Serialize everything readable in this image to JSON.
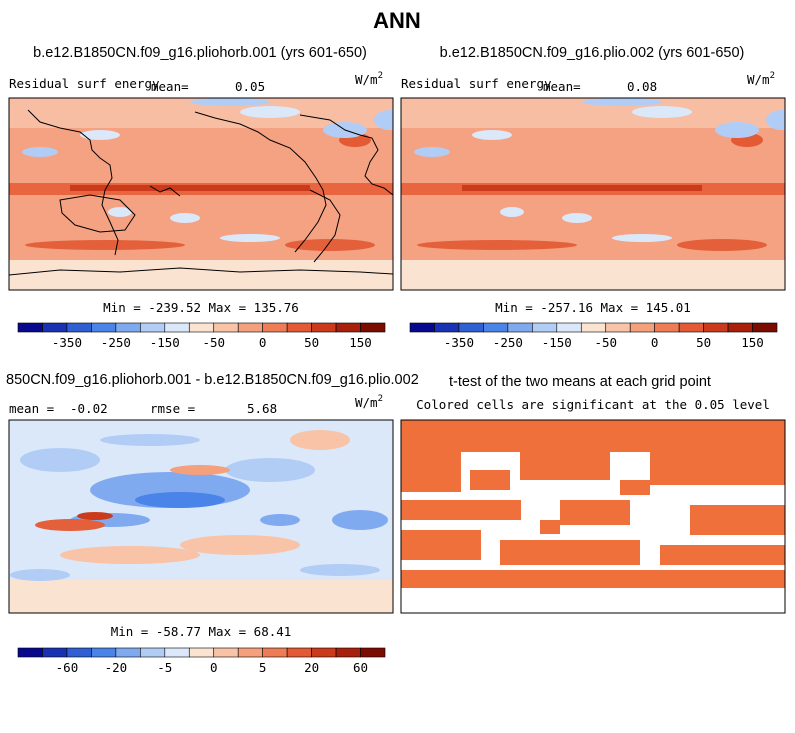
{
  "title": "ANN",
  "units_base": "W/m",
  "units_exp": "2",
  "colors": {
    "land_outline": "#000000",
    "significance": "#f0703c",
    "scale_abs": [
      "#08088f",
      "#1932b4",
      "#2f5fd2",
      "#4a84e8",
      "#80aaf0",
      "#b2cdf5",
      "#dbe8fa",
      "#fbe3d2",
      "#f8c3a6",
      "#f4a07c",
      "#ee7d56",
      "#e35a35",
      "#cc3a1c",
      "#a81f0b",
      "#7a0c02"
    ],
    "scale_diff": [
      "#08088f",
      "#1932b4",
      "#2f5fd2",
      "#4a84e8",
      "#80aaf0",
      "#b2cdf5",
      "#dbe8fa",
      "#fbe3d2",
      "#f8c3a6",
      "#f4a07c",
      "#ee7d56",
      "#e35a35",
      "#cc3a1c",
      "#a81f0b",
      "#7a0c02"
    ]
  },
  "panels": {
    "case1": {
      "case_title": "b.e12.B1850CN.f09_g16.pliohorb.001 (yrs 601-650)",
      "variable": "Residual surf energy",
      "mean_label": "mean=",
      "mean_value": "0.05",
      "stats": "Min = -239.52 Max = 135.76"
    },
    "case2": {
      "case_title": "b.e12.B1850CN.f09_g16.plio.002 (yrs 601-650)",
      "variable": "Residual surf energy",
      "mean_label": "mean=",
      "mean_value": "0.08",
      "stats": "Min = -257.16 Max = 145.01"
    },
    "diff": {
      "case_title": "850CN.f09_g16.pliohorb.001 - b.e12.B1850CN.f09_g16.plio.002",
      "mean_label": "mean =",
      "mean_value": "-0.02",
      "rmse_label": "rmse =",
      "rmse_value": "5.68",
      "stats": "Min = -58.77 Max = 68.41"
    },
    "ttest": {
      "case_title": "t-test of the two means at each grid point",
      "subtitle": "Colored cells are significant at the 0.05 level"
    }
  },
  "chart_data": [
    {
      "type": "heatmap",
      "title": "b.e12.B1850CN.f09_g16.pliohorb.001 (yrs 601-650)",
      "variable": "Residual surf energy",
      "units": "W/m2",
      "mean": 0.05,
      "min": -239.52,
      "max": 135.76,
      "colorbar_ticks": [
        "-350",
        "-250",
        "-150",
        "-50",
        "0",
        "50",
        "150"
      ],
      "colorbar_levels": 15
    },
    {
      "type": "heatmap",
      "title": "b.e12.B1850CN.f09_g16.plio.002 (yrs 601-650)",
      "variable": "Residual surf energy",
      "units": "W/m2",
      "mean": 0.08,
      "min": -257.16,
      "max": 145.01,
      "colorbar_ticks": [
        "-350",
        "-250",
        "-150",
        "-50",
        "0",
        "50",
        "150"
      ],
      "colorbar_levels": 15
    },
    {
      "type": "heatmap",
      "title": "850CN.f09_g16.pliohorb.001 - b.e12.B1850CN.f09_g16.plio.002",
      "units": "W/m2",
      "mean": -0.02,
      "rmse": 5.68,
      "min": -58.77,
      "max": 68.41,
      "colorbar_ticks": [
        "-60",
        "-20",
        "-5",
        "0",
        "5",
        "20",
        "60"
      ],
      "colorbar_levels": 15
    },
    {
      "type": "heatmap",
      "title": "t-test of the two means at each grid point",
      "subtitle": "Colored cells are significant at the 0.05 level",
      "significance_level": 0.05
    }
  ]
}
